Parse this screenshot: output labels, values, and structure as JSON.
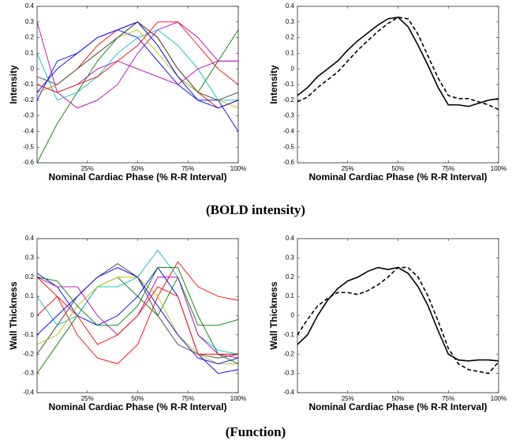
{
  "chart_data": [
    {
      "type": "line",
      "xlabel": "Nominal Cardiac Phase (% R-R Interval)",
      "ylabel": "Intensity",
      "x": [
        0,
        10,
        20,
        30,
        40,
        50,
        60,
        70,
        80,
        90,
        100
      ],
      "xlim": [
        0,
        100
      ],
      "xticks": [
        {
          "value": 25,
          "label": "25%"
        },
        {
          "value": 50,
          "label": "50%"
        },
        {
          "value": 75,
          "label": "75%"
        },
        {
          "value": 100,
          "label": "100%"
        }
      ],
      "ylim": [
        -0.6,
        0.4
      ],
      "yticks": [
        -0.6,
        -0.5,
        -0.4,
        -0.3,
        -0.2,
        -0.1,
        0,
        0.1,
        0.2,
        0.3,
        0.4
      ],
      "series": [
        {
          "color": "#008000",
          "values": [
            -0.6,
            -0.35,
            -0.15,
            0.05,
            0.2,
            0.3,
            0.15,
            -0.05,
            -0.15,
            0.05,
            0.25
          ]
        },
        {
          "color": "#bf00bf",
          "values": [
            0.3,
            -0.15,
            -0.25,
            -0.2,
            -0.1,
            0.1,
            0.25,
            0.3,
            0.2,
            0.05,
            0.05
          ]
        },
        {
          "color": "#ff0000",
          "values": [
            -0.15,
            -0.1,
            0.0,
            0.15,
            0.25,
            0.3,
            0.2,
            0.0,
            -0.15,
            -0.25,
            -0.2
          ]
        },
        {
          "color": "#0000ff",
          "values": [
            -0.2,
            0.05,
            0.1,
            0.2,
            0.25,
            0.2,
            0.05,
            -0.1,
            -0.2,
            -0.2,
            -0.4
          ]
        },
        {
          "color": "#00bfbf",
          "values": [
            0.1,
            -0.2,
            -0.15,
            -0.05,
            0.1,
            0.2,
            0.25,
            0.15,
            0.0,
            -0.2,
            -0.2
          ]
        },
        {
          "color": "#bf00bf",
          "values": [
            -0.1,
            -0.15,
            -0.1,
            0.0,
            0.05,
            0.0,
            -0.05,
            -0.1,
            0.0,
            0.05,
            0.05
          ]
        },
        {
          "color": "#bfbf00",
          "values": [
            -0.15,
            -0.1,
            0.0,
            0.1,
            0.2,
            0.25,
            0.1,
            -0.05,
            -0.15,
            -0.2,
            -0.25
          ]
        },
        {
          "color": "#0000ff",
          "values": [
            -0.15,
            0.0,
            0.1,
            0.2,
            0.25,
            0.3,
            0.15,
            -0.05,
            -0.2,
            -0.25,
            -0.2
          ]
        },
        {
          "color": "#404040",
          "values": [
            -0.05,
            -0.1,
            0.0,
            0.1,
            0.2,
            0.3,
            0.2,
            0.0,
            -0.15,
            -0.2,
            -0.15
          ]
        },
        {
          "color": "#ff0000",
          "values": [
            -0.1,
            -0.15,
            -0.1,
            -0.05,
            0.05,
            0.15,
            0.3,
            0.3,
            0.15,
            0.0,
            -0.1
          ]
        }
      ]
    },
    {
      "type": "line",
      "xlabel": "Nominal Cardiac Phase (% R-R Interval)",
      "ylabel": "Intensity",
      "x": [
        0,
        5,
        10,
        15,
        20,
        25,
        30,
        35,
        40,
        45,
        50,
        55,
        60,
        65,
        70,
        75,
        80,
        85,
        90,
        95,
        100
      ],
      "xlim": [
        0,
        100
      ],
      "xticks": [
        {
          "value": 25,
          "label": "25%"
        },
        {
          "value": 50,
          "label": "50%"
        },
        {
          "value": 75,
          "label": "75%"
        },
        {
          "value": 100,
          "label": "100%"
        }
      ],
      "ylim": [
        -0.6,
        0.4
      ],
      "yticks": [
        -0.6,
        -0.5,
        -0.4,
        -0.3,
        -0.2,
        -0.1,
        0,
        0.1,
        0.2,
        0.3,
        0.4
      ],
      "series": [
        {
          "color": "#000000",
          "line_style": "solid",
          "values": [
            -0.17,
            -0.12,
            -0.05,
            0.0,
            0.05,
            0.12,
            0.18,
            0.23,
            0.28,
            0.32,
            0.33,
            0.27,
            0.15,
            0.02,
            -0.12,
            -0.23,
            -0.23,
            -0.24,
            -0.22,
            -0.2,
            -0.19
          ]
        },
        {
          "color": "#000000",
          "line_style": "dashed",
          "values": [
            -0.21,
            -0.18,
            -0.12,
            -0.07,
            -0.02,
            0.05,
            0.12,
            0.18,
            0.24,
            0.29,
            0.33,
            0.32,
            0.22,
            0.08,
            -0.06,
            -0.17,
            -0.19,
            -0.19,
            -0.21,
            -0.23,
            -0.26
          ]
        }
      ]
    },
    {
      "type": "line",
      "xlabel": "Nominal Cardiac Phase (% R-R Interval)",
      "ylabel": "Wall Thickness",
      "x": [
        0,
        10,
        20,
        30,
        40,
        50,
        60,
        70,
        80,
        90,
        100
      ],
      "xlim": [
        0,
        100
      ],
      "xticks": [
        {
          "value": 25,
          "label": "25%"
        },
        {
          "value": 50,
          "label": "50%"
        },
        {
          "value": 75,
          "label": "75%"
        },
        {
          "value": 100,
          "label": "100%"
        }
      ],
      "ylim": [
        -0.4,
        0.4
      ],
      "yticks": [
        -0.4,
        -0.3,
        -0.2,
        -0.1,
        0,
        0.1,
        0.2,
        0.3,
        0.4
      ],
      "series": [
        {
          "color": "#ff0000",
          "values": [
            0.2,
            0.1,
            -0.1,
            -0.22,
            -0.25,
            -0.15,
            0.1,
            0.28,
            0.15,
            0.1,
            0.08
          ]
        },
        {
          "color": "#008000",
          "values": [
            -0.3,
            -0.15,
            0.0,
            0.15,
            0.2,
            0.1,
            0.0,
            0.2,
            -0.05,
            -0.05,
            -0.02
          ]
        },
        {
          "color": "#404040",
          "values": [
            -0.2,
            -0.05,
            0.1,
            0.2,
            0.27,
            0.2,
            0.0,
            -0.15,
            -0.2,
            -0.22,
            -0.2
          ]
        },
        {
          "color": "#00bfbf",
          "values": [
            0.1,
            -0.05,
            0.0,
            0.15,
            0.15,
            0.2,
            0.34,
            0.2,
            -0.1,
            -0.18,
            -0.2
          ]
        },
        {
          "color": "#0000ff",
          "values": [
            0.22,
            0.15,
            0.0,
            -0.05,
            0.0,
            0.1,
            0.25,
            0.1,
            -0.2,
            -0.3,
            -0.28
          ]
        },
        {
          "color": "#bf00bf",
          "values": [
            0.2,
            0.15,
            0.15,
            0.0,
            -0.1,
            0.0,
            0.2,
            0.2,
            -0.1,
            -0.2,
            -0.22
          ]
        },
        {
          "color": "#bfbf00",
          "values": [
            -0.15,
            -0.1,
            0.05,
            0.15,
            0.2,
            0.2,
            0.1,
            -0.1,
            -0.2,
            -0.25,
            -0.25
          ]
        },
        {
          "color": "#0000ff",
          "values": [
            -0.1,
            0.0,
            0.1,
            0.2,
            0.25,
            0.2,
            0.05,
            -0.1,
            -0.22,
            -0.25,
            -0.22
          ]
        },
        {
          "color": "#ff0000",
          "values": [
            0.0,
            0.1,
            0.0,
            -0.15,
            -0.1,
            0.0,
            0.15,
            0.1,
            -0.2,
            -0.2,
            -0.2
          ]
        },
        {
          "color": "#008000",
          "values": [
            0.2,
            0.18,
            0.05,
            -0.05,
            -0.05,
            0.05,
            0.25,
            0.25,
            0.0,
            -0.2,
            -0.25
          ]
        }
      ]
    },
    {
      "type": "line",
      "xlabel": "Nominal Cardiac Phase (% R-R Interval)",
      "ylabel": "Wall Thickness",
      "x": [
        0,
        5,
        10,
        15,
        20,
        25,
        30,
        35,
        40,
        45,
        50,
        55,
        60,
        65,
        70,
        75,
        80,
        85,
        90,
        95,
        100
      ],
      "xlim": [
        0,
        100
      ],
      "xticks": [
        {
          "value": 25,
          "label": "25%"
        },
        {
          "value": 50,
          "label": "50%"
        },
        {
          "value": 75,
          "label": "75%"
        },
        {
          "value": 100,
          "label": "100%"
        }
      ],
      "ylim": [
        -0.4,
        0.4
      ],
      "yticks": [
        -0.4,
        -0.3,
        -0.2,
        -0.1,
        0,
        0.1,
        0.2,
        0.3,
        0.4
      ],
      "series": [
        {
          "color": "#000000",
          "line_style": "solid",
          "values": [
            -0.15,
            -0.1,
            0.0,
            0.08,
            0.14,
            0.18,
            0.2,
            0.23,
            0.25,
            0.24,
            0.25,
            0.22,
            0.15,
            0.05,
            -0.08,
            -0.2,
            -0.23,
            -0.235,
            -0.23,
            -0.23,
            -0.235
          ]
        },
        {
          "color": "#000000",
          "line_style": "dashed",
          "values": [
            -0.1,
            -0.02,
            0.05,
            0.09,
            0.12,
            0.12,
            0.11,
            0.13,
            0.16,
            0.2,
            0.25,
            0.25,
            0.2,
            0.1,
            -0.03,
            -0.17,
            -0.25,
            -0.28,
            -0.29,
            -0.3,
            -0.24
          ]
        }
      ]
    }
  ],
  "captions": [
    "(BOLD intensity)",
    "(Function)"
  ]
}
